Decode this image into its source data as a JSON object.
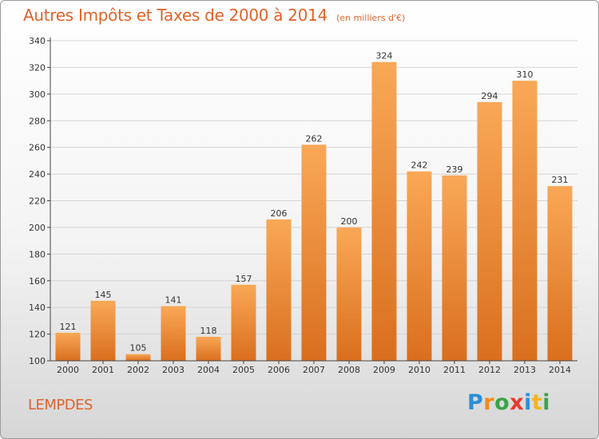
{
  "header": {
    "title": "Autres Impôts et Taxes de 2000 à 2014",
    "subtitle": "(en milliers d'€)"
  },
  "footer": {
    "city": "LEMPDES",
    "logo": "Proxiti",
    "logo_letters": [
      {
        "ch": "P",
        "color": "#2b8fd6"
      },
      {
        "ch": "r",
        "color": "#f08a1c"
      },
      {
        "ch": "o",
        "color": "#3aa34a"
      },
      {
        "ch": "x",
        "color": "#e53a2e"
      },
      {
        "ch": "i",
        "color": "#2b8fd6"
      },
      {
        "ch": "t",
        "color": "#f0b51c"
      },
      {
        "ch": "i",
        "color": "#3aa34a"
      }
    ]
  },
  "colors": {
    "bar_light": "#f9a857",
    "bar_dark": "#d96f1e",
    "accent": "#e2632a",
    "grid": "#d4d4d4",
    "axis": "#444444"
  },
  "chart_data": {
    "type": "bar",
    "categories": [
      "2000",
      "2001",
      "2002",
      "2003",
      "2004",
      "2005",
      "2006",
      "2007",
      "2008",
      "2009",
      "2010",
      "2011",
      "2012",
      "2013",
      "2014"
    ],
    "values": [
      121,
      145,
      105,
      141,
      118,
      157,
      206,
      262,
      200,
      324,
      242,
      239,
      294,
      310,
      231
    ],
    "ylim": [
      100,
      340
    ],
    "yticks": [
      100,
      120,
      140,
      160,
      180,
      200,
      220,
      240,
      260,
      280,
      300,
      320,
      340
    ],
    "grid": true,
    "legend": "none"
  }
}
